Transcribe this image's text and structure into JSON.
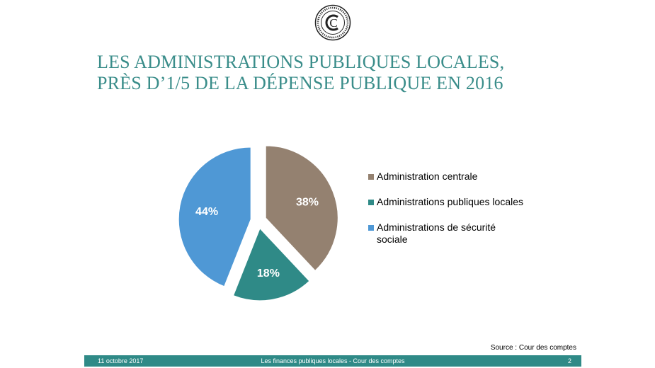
{
  "logo": {
    "letter": "C",
    "icon": "seal-logo"
  },
  "slide": {
    "title_line1": "LES ADMINISTRATIONS PUBLIQUES LOCALES,",
    "title_line2": "PRÈS D’1/5 DE LA DÉPENSE PUBLIQUE EN 2016"
  },
  "chart_data": {
    "type": "pie",
    "categories": [
      "Administration centrale",
      "Administrations publiques locales",
      "Administrations de sécurité sociale"
    ],
    "values": [
      38,
      18,
      44
    ],
    "labels": [
      "38%",
      "18%",
      "44%"
    ],
    "colors": [
      "#948170",
      "#2f8a87",
      "#4f98d5"
    ],
    "legend_position": "right"
  },
  "legend": [
    {
      "label": "Administration centrale",
      "color": "#948170"
    },
    {
      "label": "Administrations publiques locales",
      "color": "#2f8a87"
    },
    {
      "label": "Administrations de sécurité sociale",
      "color": "#4f98d5"
    }
  ],
  "source": "Source : Cour des comptes",
  "footer": {
    "date": "11 octobre 2017",
    "center": "Les finances publiques locales - Cour des comptes",
    "page": "2",
    "bg_color": "#2f8a87"
  }
}
